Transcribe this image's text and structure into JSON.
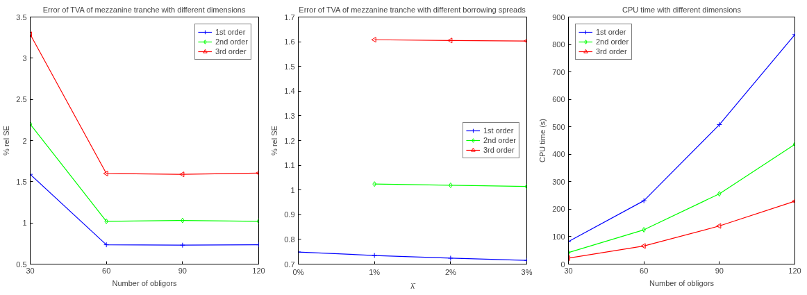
{
  "chart_data": [
    {
      "type": "line",
      "title": "Error of TVA of mezzanine tranche with different dimensions",
      "xlabel": "Number of obligors",
      "ylabel": "% rel SE",
      "x": [
        30,
        60,
        90,
        120
      ],
      "xlim": [
        30,
        120
      ],
      "xticks": [
        30,
        60,
        90,
        120
      ],
      "ylim": [
        0.5,
        3.5
      ],
      "yticks": [
        0.5,
        1,
        1.5,
        2,
        2.5,
        3,
        3.5
      ],
      "grid": false,
      "legend": "top right",
      "series": [
        {
          "name": "1st order",
          "color": "#0000ff",
          "marker": "cross",
          "values": [
            1.59,
            0.735,
            0.73,
            0.735
          ]
        },
        {
          "name": "2nd order",
          "color": "#00ff00",
          "marker": "diamond",
          "values": [
            2.2,
            1.02,
            1.03,
            1.02
          ]
        },
        {
          "name": "3rd order",
          "color": "#ff0000",
          "marker": "triangle",
          "values": [
            3.29,
            1.6,
            1.59,
            1.605
          ]
        }
      ]
    },
    {
      "type": "line",
      "title": "Error of TVA of mezzanine tranche with different borrowing spreads",
      "xlabel": "λ̄",
      "ylabel": "% rel SE",
      "xlim": [
        0,
        3
      ],
      "xticks": [
        {
          "value": 0,
          "label": "0%"
        },
        {
          "value": 1,
          "label": "1%"
        },
        {
          "value": 2,
          "label": "2%"
        },
        {
          "value": 3,
          "label": "3%"
        }
      ],
      "ylim": [
        0.7,
        1.7
      ],
      "yticks": [
        0.7,
        0.8,
        0.9,
        1,
        1.1,
        1.2,
        1.3,
        1.4,
        1.5,
        1.6,
        1.7
      ],
      "grid": false,
      "legend": "right",
      "series": [
        {
          "name": "1st order",
          "color": "#0000ff",
          "marker": "cross",
          "x": [
            0,
            1,
            2,
            3
          ],
          "values": [
            0.749,
            0.735,
            0.724,
            0.715
          ]
        },
        {
          "name": "2nd order",
          "color": "#00ff00",
          "marker": "diamond",
          "x": [
            1,
            2,
            3
          ],
          "values": [
            1.024,
            1.019,
            1.014
          ]
        },
        {
          "name": "3rd order",
          "color": "#ff0000",
          "marker": "triangle",
          "x": [
            1,
            2,
            3
          ],
          "values": [
            1.608,
            1.605,
            1.603
          ]
        }
      ]
    },
    {
      "type": "line",
      "title": "CPU time with different dimensions",
      "xlabel": "Number of obligors",
      "ylabel": "CPU time (s)",
      "x": [
        30,
        60,
        90,
        120
      ],
      "xlim": [
        30,
        120
      ],
      "xticks": [
        30,
        60,
        90,
        120
      ],
      "ylim": [
        0,
        900
      ],
      "yticks": [
        0,
        100,
        200,
        300,
        400,
        500,
        600,
        700,
        800,
        900
      ],
      "grid": false,
      "legend": "top left",
      "series": [
        {
          "name": "1st order",
          "color": "#0000ff",
          "marker": "cross",
          "values": [
            82,
            231,
            508,
            836
          ]
        },
        {
          "name": "2nd order",
          "color": "#00ff00",
          "marker": "diamond",
          "values": [
            42,
            125,
            256,
            436
          ]
        },
        {
          "name": "3rd order",
          "color": "#ff0000",
          "marker": "triangle",
          "values": [
            22,
            66,
            139,
            229
          ]
        }
      ]
    }
  ]
}
